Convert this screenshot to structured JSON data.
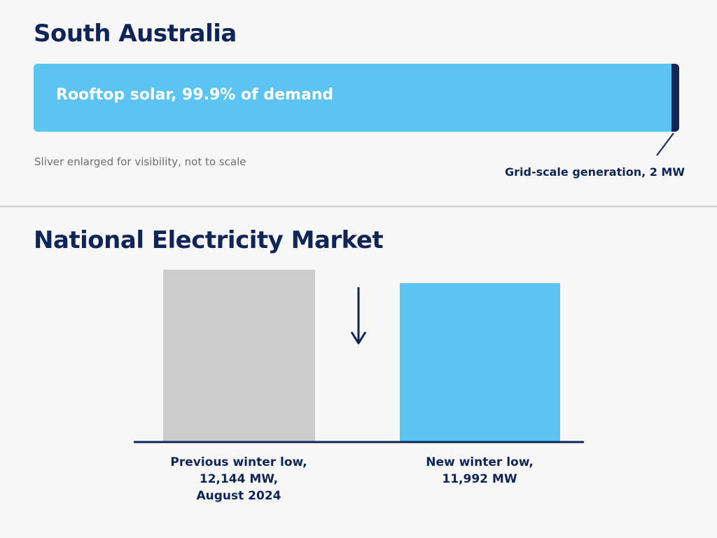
{
  "chart_data": [
    {
      "type": "bar",
      "orientation": "horizontal-stacked",
      "title": "South Australia",
      "segments": [
        {
          "label": "Rooftop solar, 99.9% of demand",
          "share_percent": 99.9,
          "color": "#5bc4f0"
        },
        {
          "label": "Grid-scale generation, 2 MW",
          "value_mw": 2,
          "color": "#0f2557"
        }
      ],
      "note": "Sliver enlarged for visibility, not to scale"
    },
    {
      "type": "bar",
      "title": "National Electricity Market",
      "categories": [
        [
          "Previous winter low,",
          "12,144 MW,",
          "August 2024"
        ],
        [
          "New winter low,",
          "11,992 MW"
        ]
      ],
      "values": [
        12144,
        11992
      ],
      "colors": [
        "#cccccc",
        "#5bc4f0"
      ],
      "axis_color": "#0f2557",
      "arrow": "down"
    }
  ]
}
